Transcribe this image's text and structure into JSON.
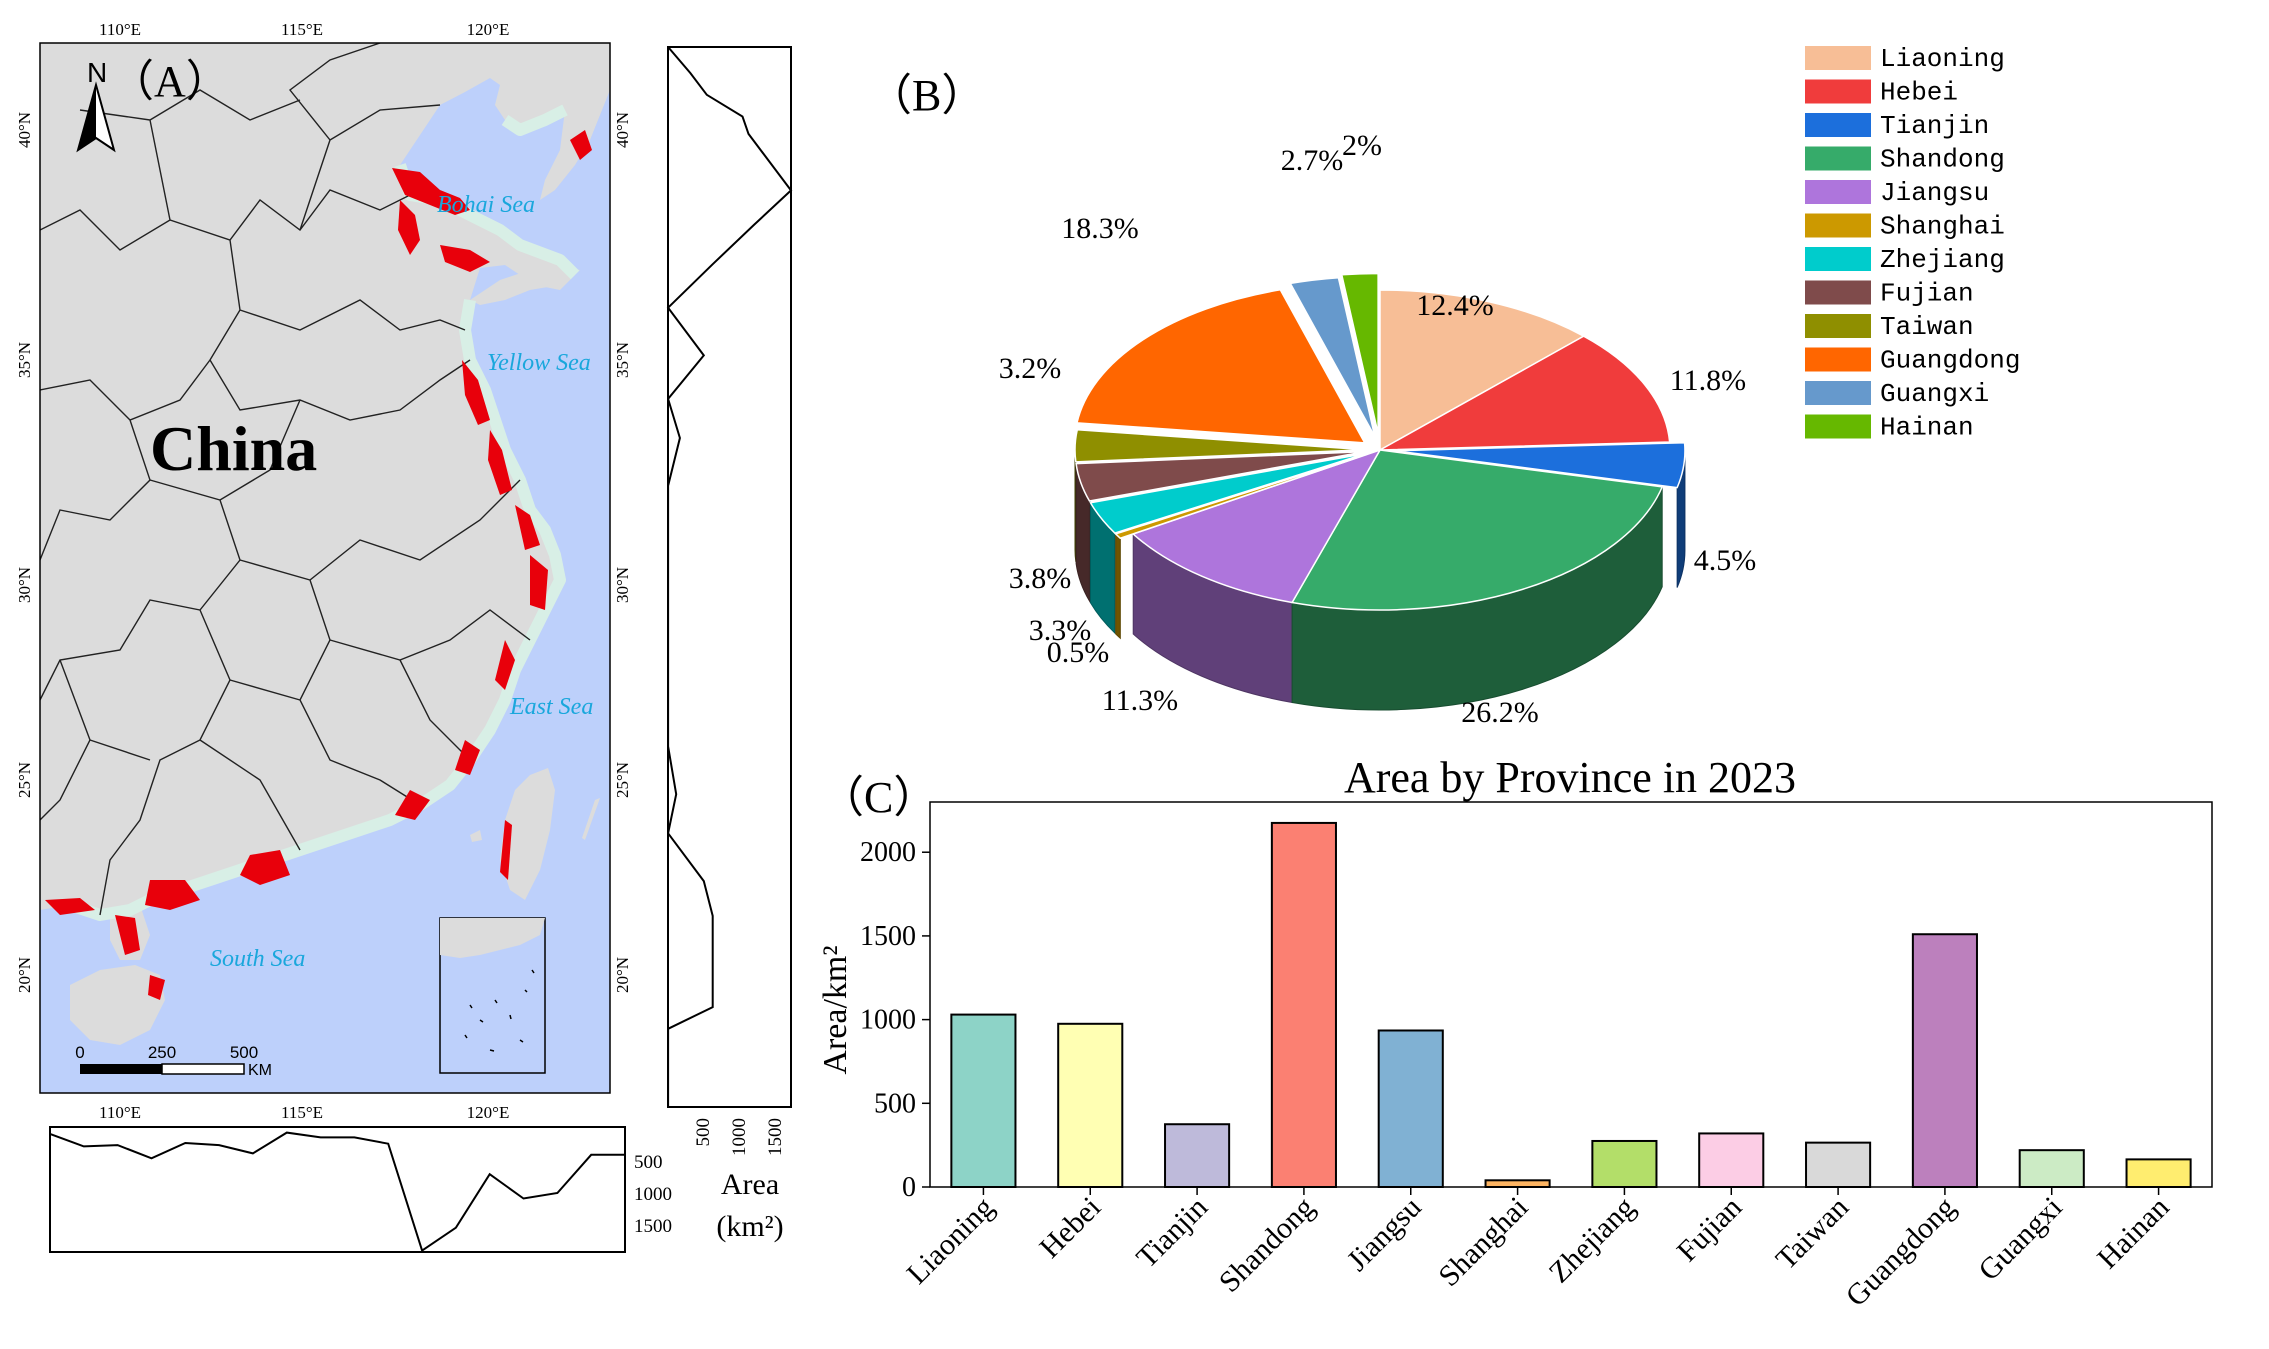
{
  "panel_a": {
    "label": "（A）",
    "north_label": "N",
    "country_label": "China",
    "seas": [
      "Bohai Sea",
      "Yellow Sea",
      "East Sea",
      "South Sea"
    ],
    "lon_ticks": [
      "110°E",
      "115°E",
      "120°E"
    ],
    "lat_ticks": [
      "20°N",
      "25°N",
      "30°N",
      "35°N",
      "40°N"
    ],
    "scale_ticks": [
      "0",
      "250",
      "500"
    ],
    "scale_unit": "KM",
    "right_profile_ticks": [
      "500",
      "1000",
      "1500"
    ],
    "bottom_profile_ticks": [
      "500",
      "1000",
      "1500"
    ],
    "area_label": "Area",
    "area_unit": "(km²)",
    "colors": {
      "land": "#dcdcdc",
      "sea": "#bdd0fb",
      "aquaculture": "#e8000b",
      "coastal": "#d8efe6",
      "sea_label": "#1aa7dc"
    }
  },
  "chart_data": [
    {
      "type": "pie",
      "panel_label": "（B）",
      "categories": [
        "Liaoning",
        "Hebei",
        "Tianjin",
        "Shandong",
        "Jiangsu",
        "Shanghai",
        "Zhejiang",
        "Fujian",
        "Taiwan",
        "Guangdong",
        "Guangxi",
        "Hainan"
      ],
      "values": [
        12.4,
        11.8,
        4.5,
        26.2,
        11.3,
        0.5,
        3.3,
        3.8,
        3.2,
        18.3,
        2.7,
        2.0
      ],
      "value_labels": [
        "12.4%",
        "11.8%",
        "4.5%",
        "26.2%",
        "11.3%",
        "0.5%",
        "3.3%",
        "3.8%",
        "3.2%",
        "18.3%",
        "2.7%",
        "2%"
      ],
      "colors": [
        "#f7be96",
        "#f03c3c",
        "#1c6fdc",
        "#36ab6a",
        "#ae75dc",
        "#cc9900",
        "#00cccc",
        "#7f4b4b",
        "#8f8f00",
        "#ff6600",
        "#6699cc",
        "#66b800"
      ],
      "legend_position": "top-right"
    },
    {
      "type": "bar",
      "panel_label": "（C）",
      "title": "Area by Province in 2023",
      "ylabel": "Area/km²",
      "xlabel": "",
      "categories": [
        "Liaoning",
        "Hebei",
        "Tianjin",
        "Shandong",
        "Jiangsu",
        "Shanghai",
        "Zhejiang",
        "Fujian",
        "Taiwan",
        "Guangdong",
        "Guangxi",
        "Hainan"
      ],
      "values": [
        1030,
        975,
        375,
        2175,
        935,
        40,
        275,
        320,
        265,
        1510,
        220,
        165
      ],
      "ylim": [
        0,
        2300
      ],
      "yticks": [
        0,
        500,
        1000,
        1500,
        2000
      ],
      "colors": [
        "#8dd3c7",
        "#ffffb3",
        "#bebada",
        "#fb8072",
        "#80b1d3",
        "#fdb462",
        "#b3de69",
        "#fccde5",
        "#d9d9d9",
        "#bc80bd",
        "#ccebc5",
        "#ffed6f"
      ]
    },
    {
      "type": "line",
      "name": "right-latitude-profile",
      "xlabel": "Area (km²)",
      "xlim": [
        0,
        1650
      ],
      "x": [
        1,
        300,
        520,
        1000,
        1080,
        1650,
        1150,
        600,
        1,
        480,
        1,
        160,
        1,
        1,
        1,
        1,
        1,
        1,
        1,
        110,
        1,
        480,
        600,
        600,
        600,
        1,
        1,
        1
      ],
      "y": [
        41.6,
        41.0,
        40.5,
        40.0,
        39.6,
        38.3,
        37.5,
        36.6,
        35.6,
        34.5,
        33.5,
        32.6,
        31.5,
        30.6,
        29.5,
        28.6,
        27.6,
        26.6,
        25.5,
        24.4,
        23.5,
        22.4,
        21.6,
        20.5,
        19.5,
        19.0,
        18.5,
        17.2
      ]
    },
    {
      "type": "line",
      "name": "bottom-longitude-profile",
      "ylabel": "Area (km²)",
      "ylim": [
        0,
        1800
      ],
      "x": [
        108,
        109,
        110,
        111,
        112,
        113,
        114,
        115,
        116,
        117,
        118,
        119,
        120,
        121,
        122,
        123,
        124,
        125
      ],
      "y": [
        100,
        280,
        260,
        450,
        230,
        260,
        380,
        80,
        150,
        150,
        240,
        1780,
        1450,
        680,
        1030,
        950,
        400,
        400
      ]
    }
  ]
}
